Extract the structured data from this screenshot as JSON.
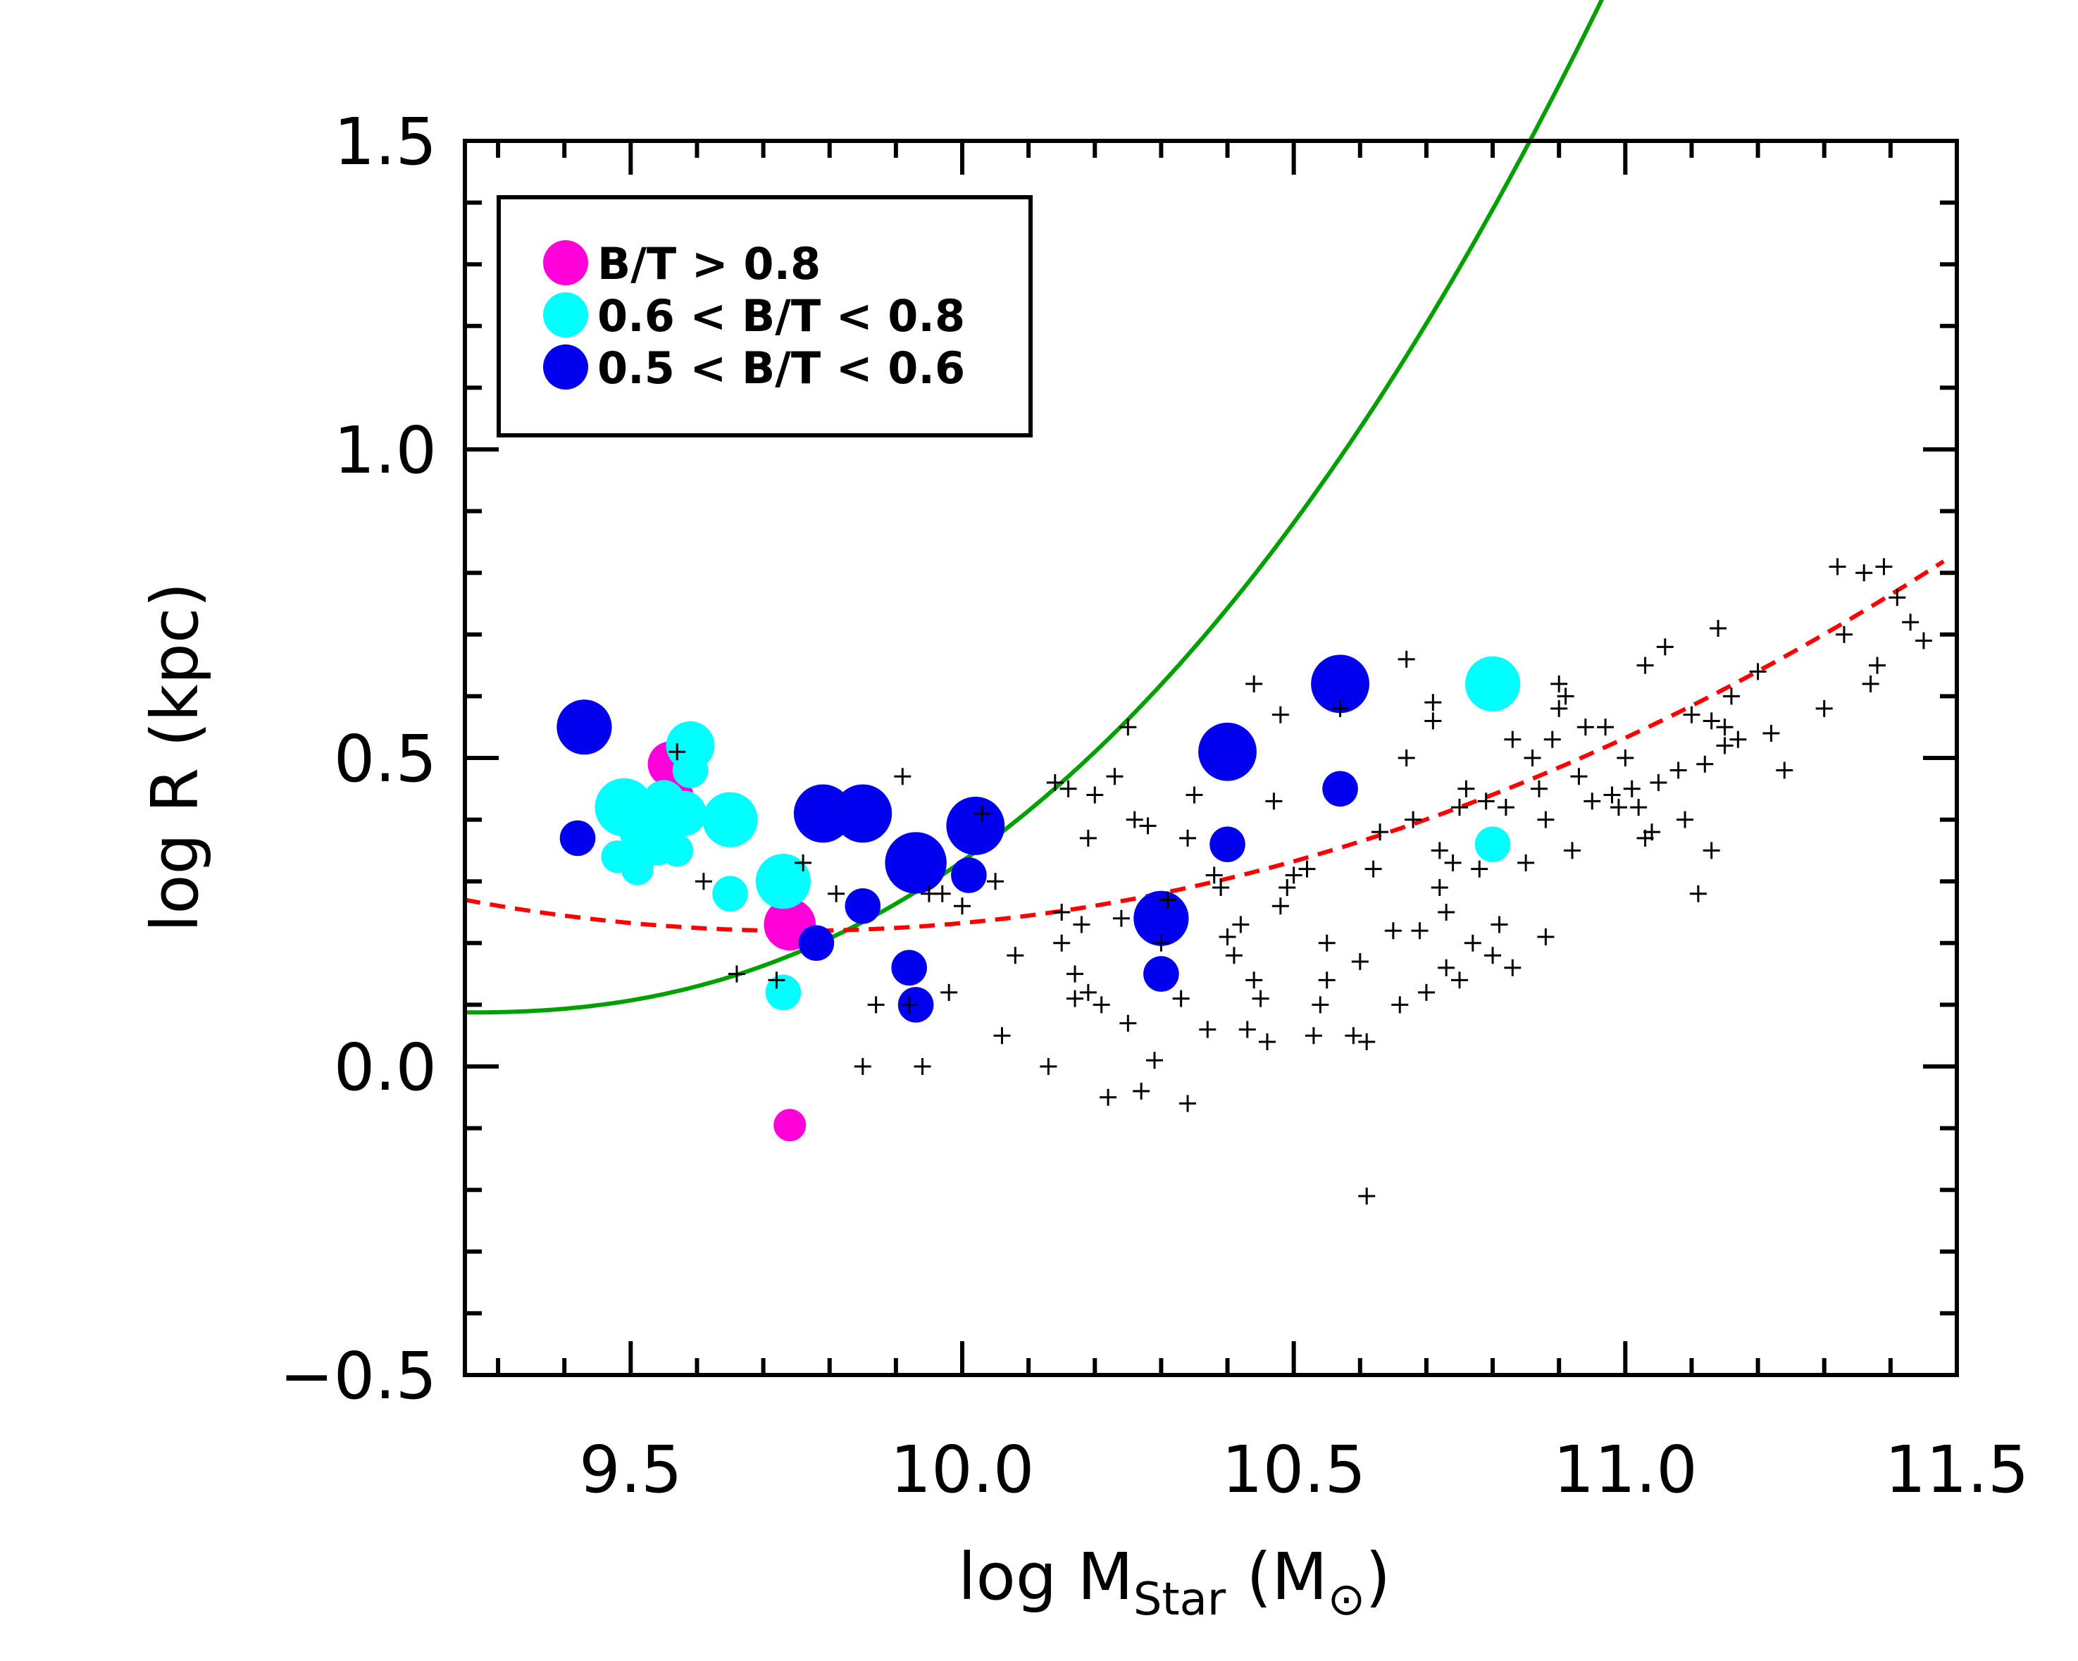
{
  "chart_data": {
    "type": "scatter",
    "title": "",
    "xlabel": {
      "prefix": "log M",
      "sub": "Star",
      "suffix_open": " (M",
      "suffix_close": ")"
    },
    "ylabel": "log R (kpc)",
    "xlim": [
      9.25,
      11.5
    ],
    "ylim": [
      -0.5,
      1.5
    ],
    "xticks": [
      9.5,
      10.0,
      10.5,
      11.0,
      11.5
    ],
    "xtick_labels": [
      "9.5",
      "10.0",
      "10.5",
      "11.0",
      "11.5"
    ],
    "yticks": [
      -0.5,
      0.0,
      0.5,
      1.0,
      1.5
    ],
    "ytick_labels": [
      "−0.5",
      "0.0",
      "0.5",
      "1.0",
      "1.5"
    ],
    "legend": {
      "position": "top-left",
      "entries": [
        {
          "label": "B/T > 0.8",
          "color": "#ff00d8"
        },
        {
          "label": "0.6 < B/T < 0.8",
          "color": "#00ffff"
        },
        {
          "label": "0.5 < B/T < 0.6",
          "color": "#0000ee"
        }
      ]
    },
    "series": [
      {
        "name": "B/T > 0.8",
        "color": "#ff00d8",
        "marker": "circle",
        "points": [
          [
            9.56,
            0.49,
            1.4
          ],
          [
            9.57,
            0.44,
            1.0
          ],
          [
            9.74,
            0.23,
            1.6
          ],
          [
            9.74,
            -0.095,
            1.0
          ]
        ]
      },
      {
        "name": "0.6 < B/T < 0.8",
        "color": "#00ffff",
        "marker": "circle",
        "points": [
          [
            9.49,
            0.42,
            1.8
          ],
          [
            9.52,
            0.38,
            1.5
          ],
          [
            9.54,
            0.36,
            1.3
          ],
          [
            9.48,
            0.34,
            1.0
          ],
          [
            9.51,
            0.32,
            1.0
          ],
          [
            9.55,
            0.43,
            1.3
          ],
          [
            9.57,
            0.35,
            1.0
          ],
          [
            9.58,
            0.41,
            1.4
          ],
          [
            9.59,
            0.52,
            1.5
          ],
          [
            9.59,
            0.48,
            1.1
          ],
          [
            9.65,
            0.4,
            1.7
          ],
          [
            9.65,
            0.28,
            1.1
          ],
          [
            9.73,
            0.3,
            1.7
          ],
          [
            9.73,
            0.12,
            1.1
          ],
          [
            10.8,
            0.62,
            1.7
          ],
          [
            10.8,
            0.36,
            1.1
          ]
        ]
      },
      {
        "name": "0.5 < B/T < 0.6",
        "color": "#0000ee",
        "marker": "circle",
        "points": [
          [
            9.43,
            0.55,
            1.7
          ],
          [
            9.42,
            0.37,
            1.1
          ],
          [
            9.79,
            0.41,
            1.8
          ],
          [
            9.85,
            0.41,
            1.8
          ],
          [
            9.85,
            0.26,
            1.1
          ],
          [
            9.78,
            0.2,
            1.1
          ],
          [
            9.93,
            0.33,
            1.9
          ],
          [
            9.92,
            0.16,
            1.1
          ],
          [
            9.93,
            0.1,
            1.1
          ],
          [
            10.02,
            0.39,
            1.8
          ],
          [
            10.01,
            0.31,
            1.1
          ],
          [
            10.3,
            0.24,
            1.7
          ],
          [
            10.3,
            0.15,
            1.1
          ],
          [
            10.4,
            0.51,
            1.8
          ],
          [
            10.4,
            0.36,
            1.1
          ],
          [
            10.57,
            0.62,
            1.8
          ],
          [
            10.57,
            0.45,
            1.1
          ]
        ]
      },
      {
        "name": "other galaxies",
        "color": "#000000",
        "marker": "plus",
        "points": [
          [
            9.57,
            0.51
          ],
          [
            9.61,
            0.3
          ],
          [
            9.66,
            0.15
          ],
          [
            9.72,
            0.14
          ],
          [
            9.76,
            0.33
          ],
          [
            9.81,
            0.28
          ],
          [
            9.85,
            0.0
          ],
          [
            9.87,
            0.1
          ],
          [
            9.91,
            0.47
          ],
          [
            9.92,
            0.1
          ],
          [
            9.94,
            0.0
          ],
          [
            9.95,
            0.28
          ],
          [
            9.97,
            0.28
          ],
          [
            9.98,
            0.12
          ],
          [
            10.0,
            0.26
          ],
          [
            10.03,
            0.41
          ],
          [
            10.05,
            0.3
          ],
          [
            10.06,
            0.05
          ],
          [
            10.08,
            0.18
          ],
          [
            10.13,
            0.0
          ],
          [
            10.14,
            0.46
          ],
          [
            10.15,
            0.25
          ],
          [
            10.15,
            0.2
          ],
          [
            10.16,
            0.45
          ],
          [
            10.17,
            0.15
          ],
          [
            10.17,
            0.11
          ],
          [
            10.18,
            0.23
          ],
          [
            10.19,
            0.37
          ],
          [
            10.19,
            0.12
          ],
          [
            10.2,
            0.44
          ],
          [
            10.21,
            0.1
          ],
          [
            10.22,
            -0.05
          ],
          [
            10.23,
            0.47
          ],
          [
            10.24,
            0.24
          ],
          [
            10.25,
            0.55
          ],
          [
            10.25,
            0.07
          ],
          [
            10.26,
            0.4
          ],
          [
            10.27,
            -0.04
          ],
          [
            10.28,
            0.39
          ],
          [
            10.29,
            0.01
          ],
          [
            10.3,
            0.2
          ],
          [
            10.31,
            0.27
          ],
          [
            10.33,
            0.11
          ],
          [
            10.34,
            0.37
          ],
          [
            10.34,
            -0.06
          ],
          [
            10.35,
            0.44
          ],
          [
            10.37,
            0.06
          ],
          [
            10.38,
            0.31
          ],
          [
            10.39,
            0.29
          ],
          [
            10.4,
            0.21
          ],
          [
            10.41,
            0.18
          ],
          [
            10.42,
            0.23
          ],
          [
            10.43,
            0.06
          ],
          [
            10.44,
            0.14
          ],
          [
            10.44,
            0.62
          ],
          [
            10.45,
            0.11
          ],
          [
            10.46,
            0.04
          ],
          [
            10.47,
            0.43
          ],
          [
            10.48,
            0.26
          ],
          [
            10.48,
            0.57
          ],
          [
            10.49,
            0.29
          ],
          [
            10.5,
            0.31
          ],
          [
            10.52,
            0.32
          ],
          [
            10.53,
            0.05
          ],
          [
            10.54,
            0.1
          ],
          [
            10.55,
            0.2
          ],
          [
            10.55,
            0.14
          ],
          [
            10.57,
            0.58
          ],
          [
            10.59,
            0.05
          ],
          [
            10.6,
            0.17
          ],
          [
            10.61,
            -0.21
          ],
          [
            10.61,
            0.04
          ],
          [
            10.62,
            0.32
          ],
          [
            10.63,
            0.38
          ],
          [
            10.65,
            0.22
          ],
          [
            10.66,
            0.1
          ],
          [
            10.67,
            0.5
          ],
          [
            10.67,
            0.66
          ],
          [
            10.68,
            0.4
          ],
          [
            10.69,
            0.22
          ],
          [
            10.7,
            0.12
          ],
          [
            10.71,
            0.59
          ],
          [
            10.71,
            0.56
          ],
          [
            10.72,
            0.35
          ],
          [
            10.72,
            0.29
          ],
          [
            10.73,
            0.16
          ],
          [
            10.73,
            0.25
          ],
          [
            10.74,
            0.33
          ],
          [
            10.75,
            0.42
          ],
          [
            10.75,
            0.14
          ],
          [
            10.76,
            0.45
          ],
          [
            10.77,
            0.2
          ],
          [
            10.78,
            0.32
          ],
          [
            10.79,
            0.43
          ],
          [
            10.8,
            0.18
          ],
          [
            10.81,
            0.23
          ],
          [
            10.82,
            0.42
          ],
          [
            10.83,
            0.16
          ],
          [
            10.83,
            0.53
          ],
          [
            10.85,
            0.33
          ],
          [
            10.86,
            0.5
          ],
          [
            10.87,
            0.45
          ],
          [
            10.88,
            0.21
          ],
          [
            10.88,
            0.4
          ],
          [
            10.89,
            0.53
          ],
          [
            10.9,
            0.58
          ],
          [
            10.9,
            0.62
          ],
          [
            10.91,
            0.6
          ],
          [
            10.92,
            0.35
          ],
          [
            10.93,
            0.47
          ],
          [
            10.94,
            0.55
          ],
          [
            10.95,
            0.43
          ],
          [
            10.97,
            0.55
          ],
          [
            10.98,
            0.44
          ],
          [
            10.99,
            0.42
          ],
          [
            11.0,
            0.5
          ],
          [
            11.01,
            0.45
          ],
          [
            11.02,
            0.42
          ],
          [
            11.03,
            0.37
          ],
          [
            11.03,
            0.65
          ],
          [
            11.04,
            0.38
          ],
          [
            11.05,
            0.46
          ],
          [
            11.06,
            0.68
          ],
          [
            11.08,
            0.48
          ],
          [
            11.09,
            0.4
          ],
          [
            11.1,
            0.57
          ],
          [
            11.11,
            0.28
          ],
          [
            11.12,
            0.49
          ],
          [
            11.13,
            0.56
          ],
          [
            11.13,
            0.35
          ],
          [
            11.14,
            0.71
          ],
          [
            11.15,
            0.55
          ],
          [
            11.15,
            0.52
          ],
          [
            11.16,
            0.6
          ],
          [
            11.17,
            0.53
          ],
          [
            11.2,
            0.64
          ],
          [
            11.22,
            0.54
          ],
          [
            11.24,
            0.48
          ],
          [
            11.3,
            0.58
          ],
          [
            11.32,
            0.81
          ],
          [
            11.33,
            0.7
          ],
          [
            11.36,
            0.8
          ],
          [
            11.37,
            0.62
          ],
          [
            11.38,
            0.65
          ],
          [
            11.39,
            0.81
          ],
          [
            11.41,
            0.76
          ],
          [
            11.43,
            0.72
          ],
          [
            11.45,
            0.69
          ]
        ]
      }
    ],
    "curves": [
      {
        "name": "green fit",
        "color": "#00a000",
        "style": "solid",
        "form": "y = 0.0875 + 0.475*(x-9.25)^2.3"
      },
      {
        "name": "red fit",
        "color": "#ff0000",
        "style": "dashed",
        "form": "y = 0.22 + 0.2*(x-9.75)^2"
      }
    ]
  }
}
